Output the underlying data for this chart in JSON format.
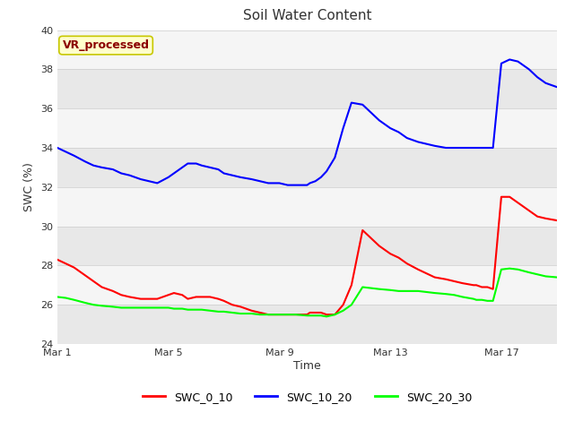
{
  "title": "Soil Water Content",
  "xlabel": "Time",
  "ylabel": "SWC (%)",
  "ylim": [
    24,
    40
  ],
  "yticks": [
    24,
    26,
    28,
    30,
    32,
    34,
    36,
    38,
    40
  ],
  "fig_bg_color": "#ffffff",
  "plot_bg_color": "#ffffff",
  "band_colors": [
    "#e8e8e8",
    "#f5f5f5"
  ],
  "annotation_text": "VR_processed",
  "annotation_color": "#8b0000",
  "annotation_bg": "#ffffcc",
  "annotation_border": "#c8c800",
  "series": {
    "SWC_0_10": {
      "color": "red",
      "x": [
        0,
        0.3,
        0.6,
        1,
        1.3,
        1.6,
        2,
        2.3,
        2.6,
        3,
        3.3,
        3.6,
        4,
        4.2,
        4.5,
        4.7,
        5,
        5.2,
        5.5,
        5.8,
        6,
        6.3,
        6.6,
        7,
        7.3,
        7.6,
        8,
        8.3,
        8.6,
        9,
        9.1,
        9.3,
        9.5,
        9.7,
        10,
        10.3,
        10.6,
        11,
        11.3,
        11.6,
        12,
        12.3,
        12.6,
        13,
        13.3,
        13.6,
        14,
        14.3,
        14.6,
        15,
        15.1,
        15.3,
        15.5,
        15.7,
        16,
        16.3,
        16.6,
        17,
        17.3,
        17.6,
        18
      ],
      "y": [
        28.3,
        28.1,
        27.9,
        27.5,
        27.2,
        26.9,
        26.7,
        26.5,
        26.4,
        26.3,
        26.3,
        26.3,
        26.5,
        26.6,
        26.5,
        26.3,
        26.4,
        26.4,
        26.4,
        26.3,
        26.2,
        26.0,
        25.9,
        25.7,
        25.6,
        25.5,
        25.5,
        25.5,
        25.5,
        25.5,
        25.6,
        25.6,
        25.6,
        25.5,
        25.5,
        26.0,
        27.0,
        29.8,
        29.4,
        29.0,
        28.6,
        28.4,
        28.1,
        27.8,
        27.6,
        27.4,
        27.3,
        27.2,
        27.1,
        27.0,
        27.0,
        26.9,
        26.9,
        26.8,
        31.5,
        31.5,
        31.2,
        30.8,
        30.5,
        30.4,
        30.3
      ]
    },
    "SWC_10_20": {
      "color": "blue",
      "x": [
        0,
        0.3,
        0.6,
        1,
        1.3,
        1.6,
        2,
        2.3,
        2.6,
        3,
        3.3,
        3.6,
        4,
        4.2,
        4.5,
        4.7,
        5,
        5.2,
        5.5,
        5.8,
        6,
        6.3,
        6.6,
        7,
        7.3,
        7.6,
        8,
        8.3,
        8.6,
        9,
        9.1,
        9.3,
        9.5,
        9.7,
        10,
        10.3,
        10.6,
        11,
        11.3,
        11.6,
        12,
        12.3,
        12.6,
        13,
        13.3,
        13.6,
        14,
        14.3,
        14.6,
        15,
        15.1,
        15.3,
        15.5,
        15.7,
        16,
        16.3,
        16.6,
        17,
        17.3,
        17.6,
        18
      ],
      "y": [
        34.0,
        33.8,
        33.6,
        33.3,
        33.1,
        33.0,
        32.9,
        32.7,
        32.6,
        32.4,
        32.3,
        32.2,
        32.5,
        32.7,
        33.0,
        33.2,
        33.2,
        33.1,
        33.0,
        32.9,
        32.7,
        32.6,
        32.5,
        32.4,
        32.3,
        32.2,
        32.2,
        32.1,
        32.1,
        32.1,
        32.2,
        32.3,
        32.5,
        32.8,
        33.5,
        35.0,
        36.3,
        36.2,
        35.8,
        35.4,
        35.0,
        34.8,
        34.5,
        34.3,
        34.2,
        34.1,
        34.0,
        34.0,
        34.0,
        34.0,
        34.0,
        34.0,
        34.0,
        34.0,
        38.3,
        38.5,
        38.4,
        38.0,
        37.6,
        37.3,
        37.1
      ]
    },
    "SWC_20_30": {
      "color": "lime",
      "x": [
        0,
        0.3,
        0.6,
        1,
        1.3,
        1.6,
        2,
        2.3,
        2.6,
        3,
        3.3,
        3.6,
        4,
        4.2,
        4.5,
        4.7,
        5,
        5.2,
        5.5,
        5.8,
        6,
        6.3,
        6.6,
        7,
        7.3,
        7.6,
        8,
        8.3,
        8.6,
        9,
        9.1,
        9.3,
        9.5,
        9.7,
        10,
        10.3,
        10.6,
        11,
        11.3,
        11.6,
        12,
        12.3,
        12.6,
        13,
        13.3,
        13.6,
        14,
        14.3,
        14.6,
        15,
        15.1,
        15.3,
        15.5,
        15.7,
        16,
        16.3,
        16.6,
        17,
        17.3,
        17.6,
        18
      ],
      "y": [
        26.4,
        26.35,
        26.25,
        26.1,
        26.0,
        25.95,
        25.9,
        25.85,
        25.85,
        25.85,
        25.85,
        25.85,
        25.85,
        25.8,
        25.8,
        25.75,
        25.75,
        25.75,
        25.7,
        25.65,
        25.65,
        25.6,
        25.55,
        25.55,
        25.5,
        25.5,
        25.5,
        25.5,
        25.5,
        25.45,
        25.45,
        25.45,
        25.45,
        25.4,
        25.5,
        25.7,
        26.0,
        26.9,
        26.85,
        26.8,
        26.75,
        26.7,
        26.7,
        26.7,
        26.65,
        26.6,
        26.55,
        26.5,
        26.4,
        26.3,
        26.25,
        26.25,
        26.2,
        26.2,
        27.8,
        27.85,
        27.8,
        27.65,
        27.55,
        27.45,
        27.4
      ]
    }
  },
  "xtick_positions": [
    0,
    4,
    8,
    12,
    16
  ],
  "xtick_labels": [
    "Mar 1",
    "Mar 5",
    "Mar 9",
    "Mar 13",
    "Mar 17"
  ],
  "xlim": [
    0,
    18
  ],
  "legend_entries": [
    "SWC_0_10",
    "SWC_10_20",
    "SWC_20_30"
  ],
  "legend_colors": [
    "red",
    "blue",
    "lime"
  ]
}
